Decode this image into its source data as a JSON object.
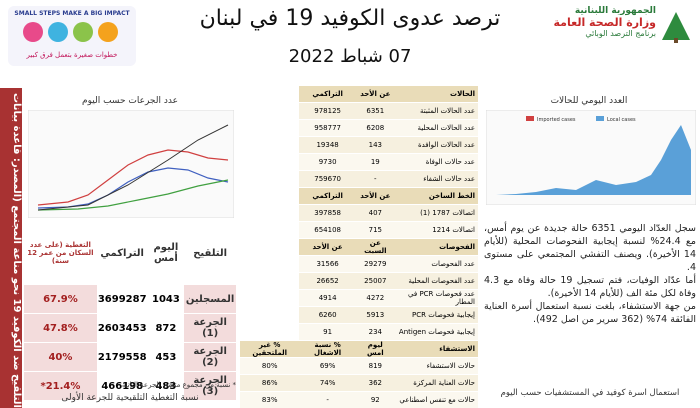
{
  "header": {
    "ministry": [
      "الجمهورية اللبنانية",
      "وزارة الصحة العامة",
      "برنامج الترصد الوبائي"
    ],
    "title": "ترصد عدوى الكوفيد 19 في لبنان",
    "date": "07 شباط 2022",
    "campaign_en": "SMALL STEPS MAKE A BIG IMPACT",
    "campaign_ar": "خطوات صغيرة بتعمل فرق كبير"
  },
  "cases_table": {
    "sections": [
      {
        "columns": [
          "الحالات",
          "عن الأحد",
          "التراكمي"
        ],
        "rows": [
          [
            "عدد الحالات المثبتة",
            6351,
            978125
          ],
          [
            "عدد الحالات المحلية",
            6208,
            958777
          ],
          [
            "عدد الحالات الوافدة",
            143,
            19348
          ],
          [
            "عدد حالات الوفاة",
            19,
            9730
          ],
          [
            "عدد حالات الشفاء",
            "-",
            759670
          ]
        ]
      },
      {
        "columns": [
          "الخط الساخن",
          "عن الأحد",
          "التراكمي"
        ],
        "rows": [
          [
            "اتصالات 1787 (1)",
            407,
            397858
          ],
          [
            "اتصالات 1214",
            715,
            654108
          ]
        ]
      },
      {
        "columns": [
          "الفحوصات",
          "عن السبت",
          "عن الأحد"
        ],
        "rows": [
          [
            "عدد الفحوصات",
            29279,
            31566
          ],
          [
            "عدد الفحوصات المحلية",
            25007,
            26652
          ],
          [
            "عدد فحوصات PCR في المطار",
            4272,
            4914
          ],
          [
            "إيجابية فحوصات PCR",
            5913,
            6260
          ],
          [
            "إيجابية فحوصات Antigen",
            234,
            91
          ]
        ]
      },
      {
        "columns": [
          "الاستشفاء",
          "ليوم امس",
          "% نسبة الاشغال",
          "% غير الملتحقين"
        ],
        "rows": [
          [
            "حالات الاستشفاء",
            819,
            "69%",
            "80%"
          ],
          [
            "حالات العناية المركزة",
            362,
            "74%",
            "86%"
          ],
          [
            "حالات مع تنفس اصطناعي",
            92,
            "-",
            "83%"
          ]
        ]
      }
    ]
  },
  "vaccination": {
    "strip": "التلقيح ضد الكوفيد 19 نحو مناعة المجتمع (المصدر: قاعدة بيانات",
    "chart_title": "عدد الجرعات حسب اليوم",
    "columns": [
      "التلقيح",
      "اليوم أمس",
      "التراكمي",
      "التغطية (على عدد السكان من عمر 12 سنة)"
    ],
    "rows": [
      [
        "المسجلين",
        1043,
        3699287,
        "67.9%"
      ],
      [
        "الجرعة (1)",
        872,
        2603453,
        "47.8%"
      ],
      [
        "الجرعة (2)",
        453,
        2179558,
        "40%"
      ],
      [
        "الجرعة (3)",
        483,
        466198,
        "21.4%*"
      ]
    ],
    "note": "* نسبة من مجموع متلقي الجرعة الثانية",
    "footer_title": "نسبة التغطية التلقيحية للجرعة الأولى"
  },
  "daily_cases": {
    "title": "العدد اليومي للحالات",
    "legend": [
      "Imported cases",
      "Local cases"
    ]
  },
  "summary": [
    "سجل العدّاد اليومي 6351 حالة جديدة عن يوم أمس، مع 24.4% لنسبة إيجابية الفحوصات المحلية (للأيام 14 الأخيرة). ويصنف التفشي المجتمعي على مستوى 4.",
    "أما عدّاد الوفيات، فتم تسجيل 19 حالة وفاة مع 4.3 وفاة لكل مئة الف (للأيام 14 الأخيرة).",
    "من جهة الاستشفاء، بلغت نسبة استعمال أسرة العناية الفائقة 74% (362 سرير من اصل 492)."
  ],
  "hospital_chart_title": "استعمال اسرة كوفيد في المستشفيات حسب اليوم"
}
